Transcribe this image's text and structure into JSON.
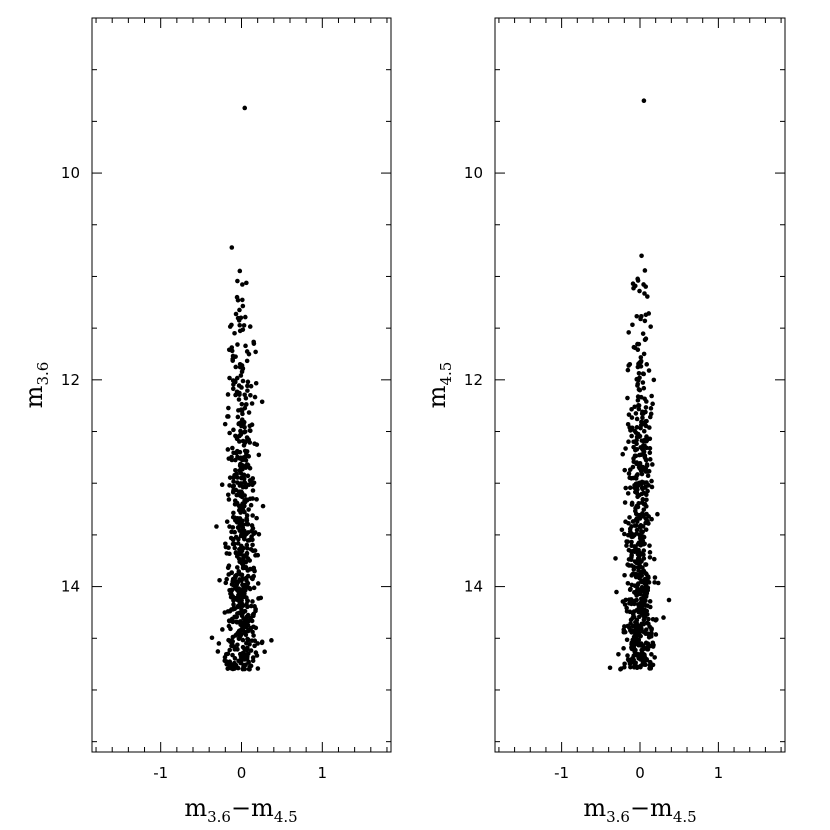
{
  "chart_data": [
    {
      "type": "scatter",
      "xlabel": "m",
      "xlabel_sub1": "3.6",
      "xlabel_dash": "−",
      "xlabel_main2": "m",
      "xlabel_sub2": "4.5",
      "ylabel": "m",
      "ylabel_sub": "3.6",
      "xlim": [
        -1.85,
        1.85
      ],
      "ylim": [
        8.5,
        15.6
      ],
      "y_inverted": true,
      "x_major_ticks": [
        -1,
        0,
        1
      ],
      "x_tick_labels": [
        "-1",
        "0",
        "1"
      ],
      "y_major_ticks": [
        10,
        12,
        14
      ],
      "y_tick_labels": [
        "10",
        "12",
        "14"
      ],
      "marker_color": "#000000",
      "bright_point": [
        0.04,
        9.37
      ],
      "branch": {
        "x_center": 0.0,
        "x_spread": 0.06,
        "y_top": 10.7,
        "y_bottom": 14.8,
        "n_points": 620
      },
      "outliers": [
        [
          -0.28,
          14.55
        ],
        [
          0.37,
          14.52
        ],
        [
          0.1,
          14.8
        ],
        [
          0.2,
          14.55
        ],
        [
          -0.12,
          10.72
        ]
      ]
    },
    {
      "type": "scatter",
      "xlabel": "m",
      "xlabel_sub1": "3.6",
      "xlabel_dash": "−",
      "xlabel_main2": "m",
      "xlabel_sub2": "4.5",
      "ylabel": "m",
      "ylabel_sub": "4.5",
      "xlim": [
        -1.85,
        1.85
      ],
      "ylim": [
        8.5,
        15.6
      ],
      "y_inverted": true,
      "x_major_ticks": [
        -1,
        0,
        1
      ],
      "x_tick_labels": [
        "-1",
        "0",
        "1"
      ],
      "y_major_ticks": [
        10,
        12,
        14
      ],
      "y_tick_labels": [
        "10",
        "12",
        "14"
      ],
      "marker_color": "#000000",
      "bright_point": [
        0.05,
        9.3
      ],
      "branch": {
        "x_center": 0.0,
        "x_spread": 0.06,
        "y_top": 10.78,
        "y_bottom": 14.8,
        "n_points": 620
      },
      "outliers": [
        [
          0.37,
          14.13
        ],
        [
          0.3,
          14.3
        ],
        [
          -0.2,
          14.78
        ],
        [
          -0.25,
          14.8
        ],
        [
          0.02,
          10.8
        ]
      ]
    }
  ]
}
